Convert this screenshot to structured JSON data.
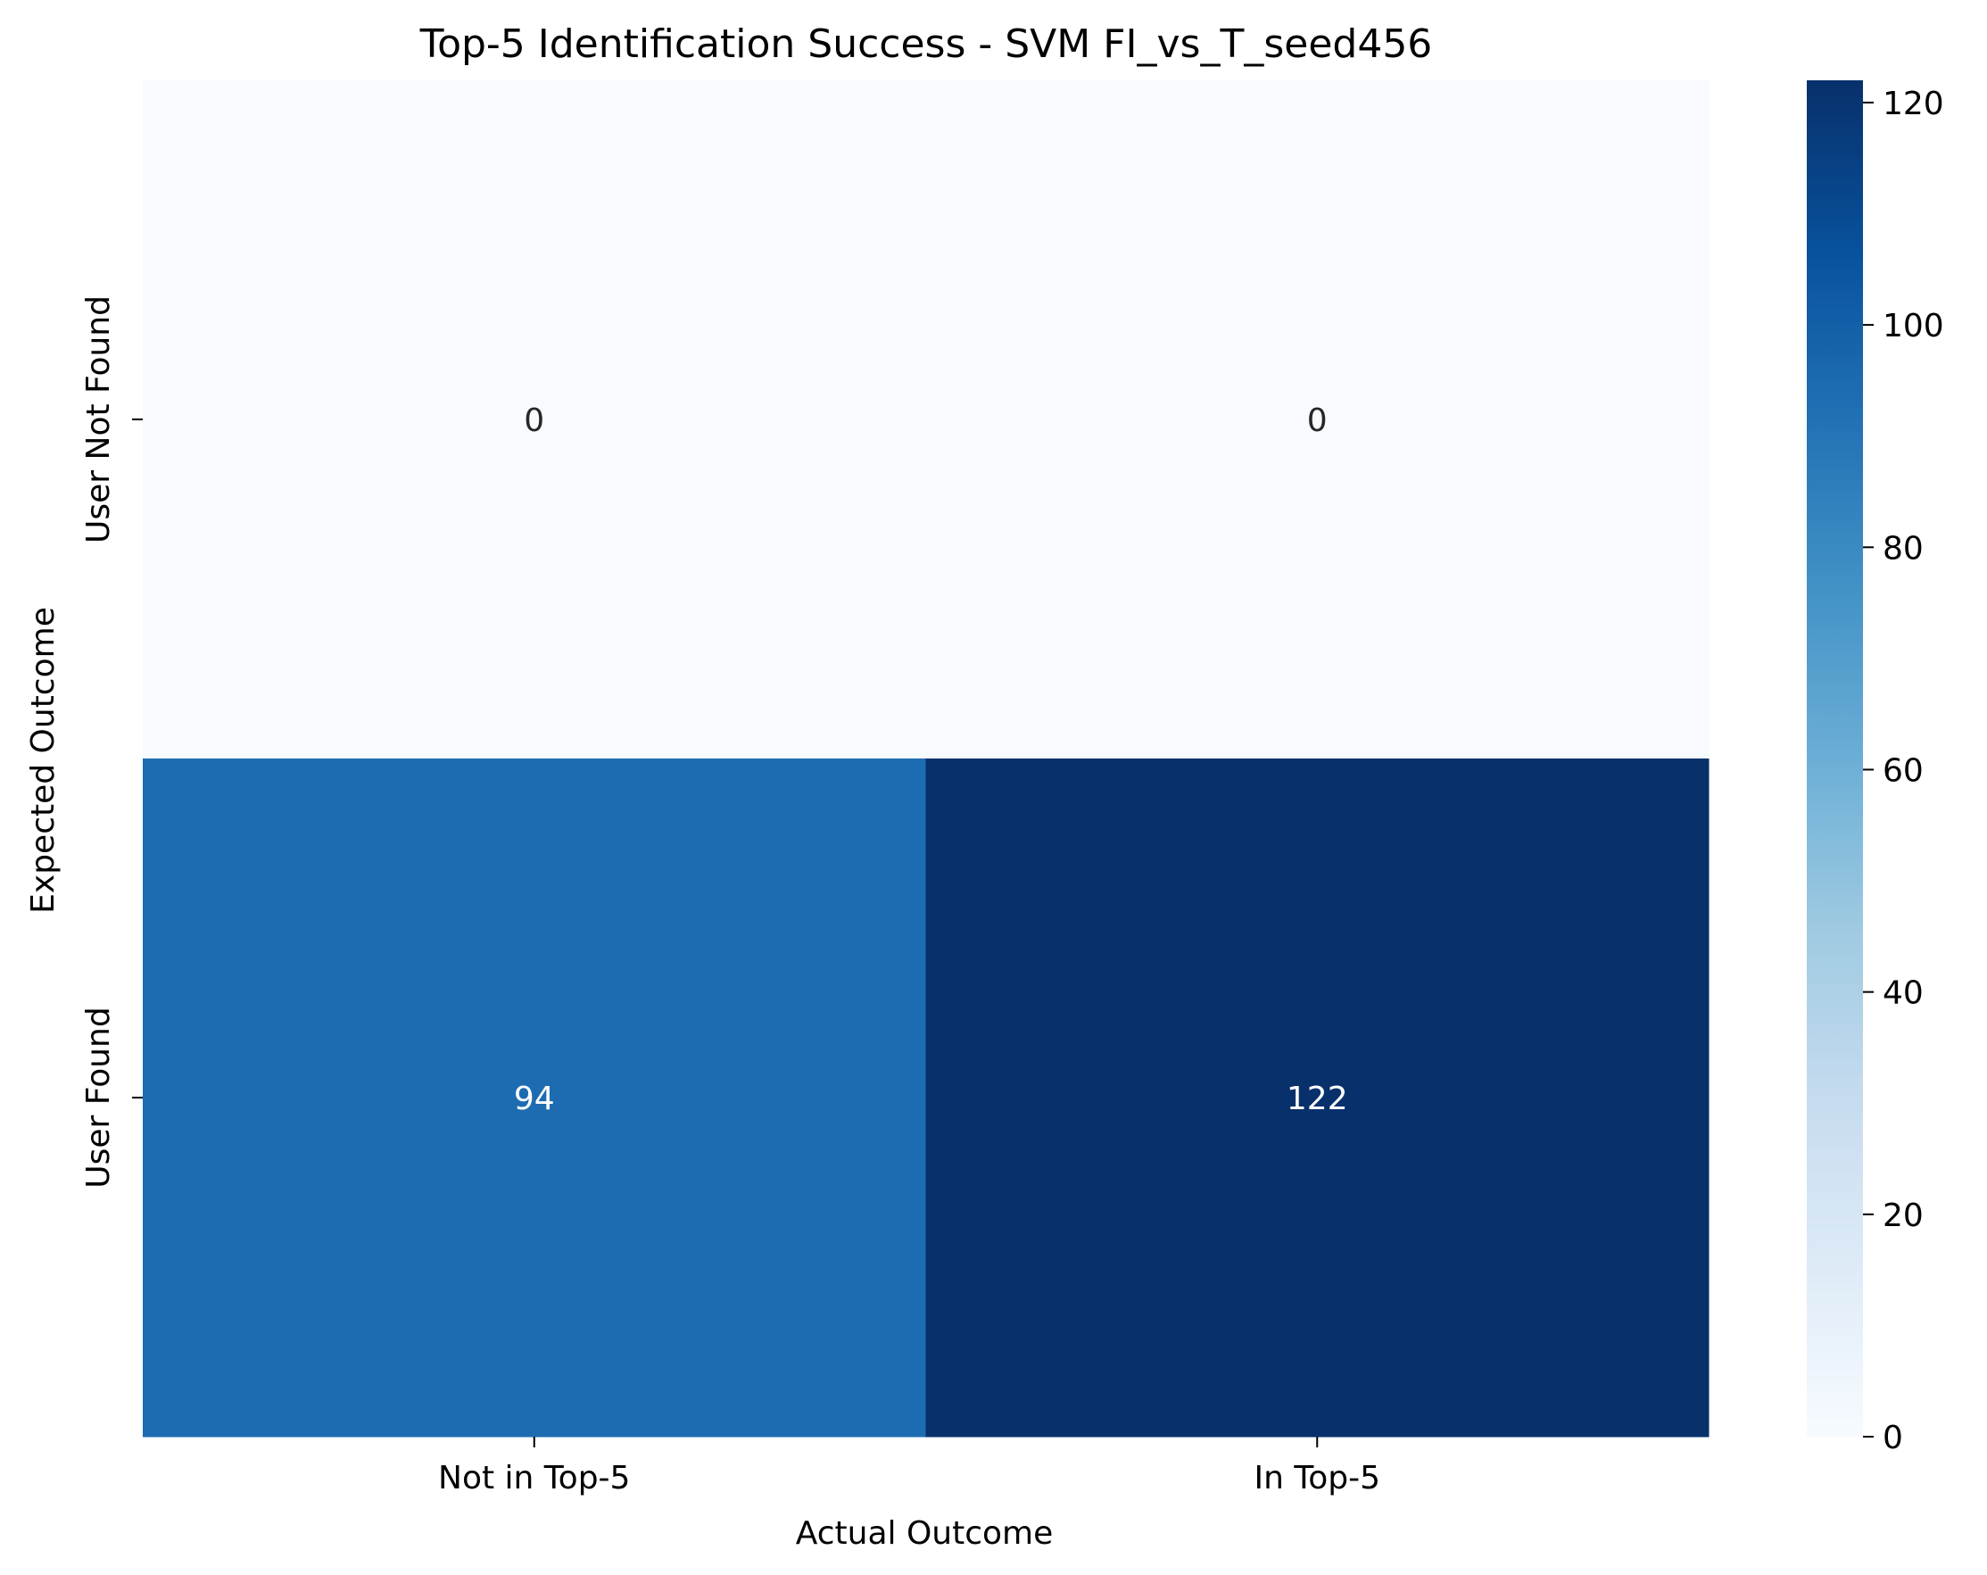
{
  "chart_data": {
    "type": "heatmap",
    "title": "Top-5 Identification Success - SVM FI_vs_T_seed456",
    "xlabel": "Actual Outcome",
    "ylabel": "Expected Outcome",
    "x_categories": [
      "Not in Top-5",
      "In Top-5"
    ],
    "y_categories": [
      "User Not Found",
      "User Found"
    ],
    "values": [
      [
        0,
        0
      ],
      [
        94,
        122
      ]
    ],
    "colormap": "Blues",
    "colorbar": {
      "range": [
        0,
        122
      ],
      "ticks": [
        0,
        20,
        40,
        60,
        80,
        100,
        120
      ]
    },
    "colors": {
      "low": "#f7fbff",
      "high": "#08306b",
      "annotation_light": "#ffffff",
      "annotation_dark": "#262626"
    }
  }
}
